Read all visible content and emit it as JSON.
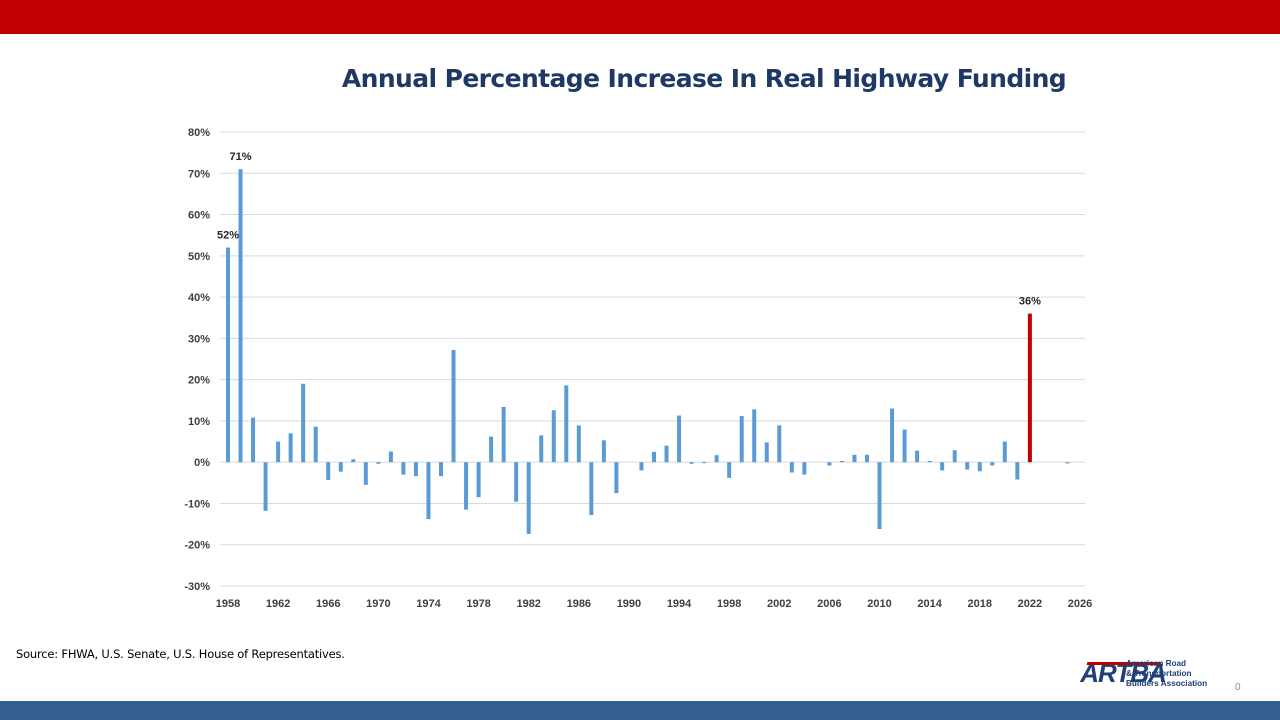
{
  "slide": {
    "title": "Annual Percentage Increase In Real Highway Funding",
    "source": "Source: FHWA, U.S. Senate, U.S. House of Representatives.",
    "page_number": "0",
    "logo": {
      "mark": "ARTBA",
      "lines": [
        "American Road",
        "& Transportation",
        "Builders Association"
      ]
    },
    "colors": {
      "top_bar": "#C00000",
      "bottom_bar": "#365F91",
      "title": "#1F3864",
      "bar": "#5B9BD5",
      "highlight_bar": "#C00000"
    }
  },
  "chart_data": {
    "type": "bar",
    "title": "Annual Percentage Increase In Real Highway Funding",
    "xlabel": "",
    "ylabel": "",
    "ylim": [
      -30,
      80
    ],
    "yticks": [
      80,
      70,
      60,
      50,
      40,
      30,
      20,
      10,
      0,
      -10,
      -20,
      -30
    ],
    "ytick_labels": [
      "80%",
      "70%",
      "60%",
      "50%",
      "40%",
      "30%",
      "20%",
      "10%",
      "0%",
      "-10%",
      "-20%",
      "-30%"
    ],
    "xlim": [
      1958,
      2026
    ],
    "xticks": [
      1958,
      1962,
      1966,
      1970,
      1974,
      1978,
      1982,
      1986,
      1990,
      1994,
      1998,
      2002,
      2006,
      2010,
      2014,
      2018,
      2022,
      2026
    ],
    "grid": true,
    "legend": "none",
    "highlight_year": 2022,
    "x": [
      1958,
      1959,
      1960,
      1961,
      1962,
      1963,
      1964,
      1965,
      1966,
      1967,
      1968,
      1969,
      1970,
      1971,
      1972,
      1973,
      1974,
      1975,
      1976,
      1977,
      1978,
      1979,
      1980,
      1981,
      1982,
      1983,
      1984,
      1985,
      1986,
      1987,
      1988,
      1989,
      1990,
      1991,
      1992,
      1993,
      1994,
      1995,
      1996,
      1997,
      1998,
      1999,
      2000,
      2001,
      2002,
      2003,
      2004,
      2005,
      2006,
      2007,
      2008,
      2009,
      2010,
      2011,
      2012,
      2013,
      2014,
      2015,
      2016,
      2017,
      2018,
      2019,
      2020,
      2021,
      2022,
      2023,
      2024,
      2025
    ],
    "values": [
      52,
      71,
      10.8,
      -11.8,
      5,
      7,
      19,
      8.6,
      -4.3,
      -2.3,
      0.7,
      -5.5,
      -0.4,
      2.6,
      -3,
      -3.4,
      -13.8,
      -3.4,
      27.2,
      -11.5,
      -8.5,
      6.2,
      13.4,
      -9.6,
      -17.4,
      6.5,
      12.6,
      18.6,
      8.9,
      -12.8,
      5.3,
      -7.5,
      0,
      -2,
      2.5,
      4,
      11.3,
      -0.4,
      -0.2,
      1.7,
      -3.8,
      11.2,
      12.8,
      4.8,
      8.9,
      -2.5,
      -3,
      0,
      -0.8,
      0.3,
      1.8,
      1.8,
      -16.2,
      13,
      7.9,
      2.8,
      0.3,
      -2,
      2.9,
      -1.8,
      -2.2,
      -0.8,
      5,
      -4.2,
      36,
      0,
      0,
      -0.3
    ],
    "annotations": [
      {
        "year": 1958,
        "text": "52%"
      },
      {
        "year": 1959,
        "text": "71%"
      },
      {
        "year": 2022,
        "text": "36%"
      }
    ]
  }
}
